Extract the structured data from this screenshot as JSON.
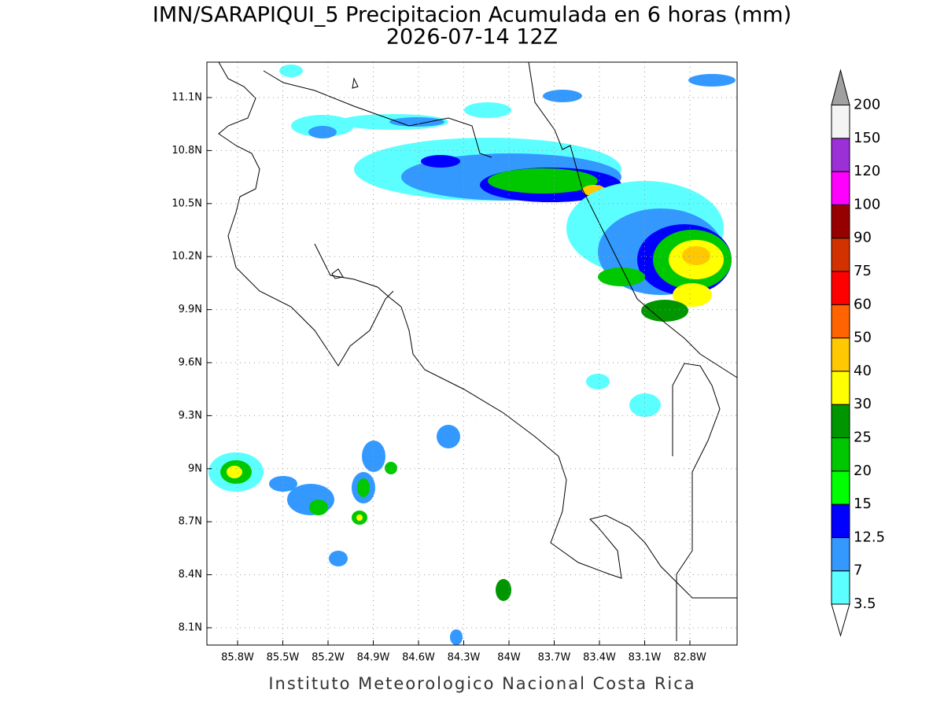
{
  "title": {
    "line1": "IMN/SARAPIQUI_5 Precipitacion Acumulada en 6 horas (mm)",
    "line2": "2026-07-14 12Z"
  },
  "map": {
    "lat_ticks": [
      "11.1N",
      "10.8N",
      "10.5N",
      "10.2N",
      "9.9N",
      "9.6N",
      "9.3N",
      "9N",
      "8.7N",
      "8.4N",
      "8.1N"
    ],
    "lon_ticks": [
      "85.8W",
      "85.5W",
      "85.2W",
      "84.9W",
      "84.6W",
      "84.3W",
      "84W",
      "83.7W",
      "83.4W",
      "83.1W",
      "82.8W"
    ]
  },
  "colorbar": {
    "levels": [
      3.5,
      7,
      12.5,
      15,
      20,
      25,
      30,
      40,
      50,
      60,
      75,
      90,
      100,
      120,
      150,
      200
    ],
    "colors": [
      "#5cffff",
      "#3399ff",
      "#0000ff",
      "#00ff00",
      "#00c800",
      "#009600",
      "#ffff00",
      "#ffc800",
      "#ff6400",
      "#ff0000",
      "#d23200",
      "#960000",
      "#ff00ff",
      "#9b30d6",
      "#f4f4f4"
    ],
    "over_color": "#a0a0a0",
    "under_color": "#ffffff"
  },
  "footer": "Instituto Meteorologico Nacional Costa Rica"
}
